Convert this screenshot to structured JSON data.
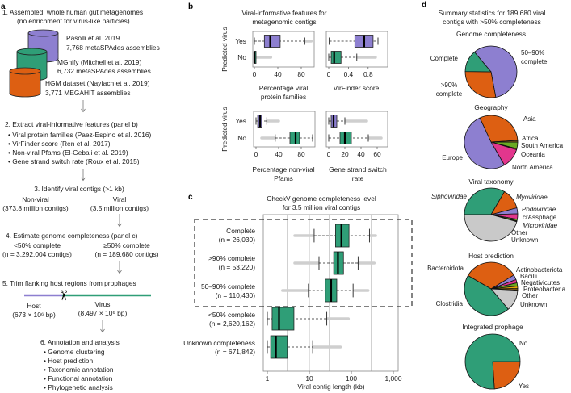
{
  "panel_labels": {
    "a": "a",
    "b": "b",
    "c": "c",
    "d": "d"
  },
  "colors": {
    "purple": "#8d7fd0",
    "green": "#2f9e77",
    "orange": "#dd5f12",
    "pink": "#e2368d",
    "lime": "#6aaa22",
    "yellow": "#e3ab08",
    "grey": "#c9c9c9",
    "brown": "#8a6418",
    "outlier": "#cfcfcf"
  },
  "flow": {
    "step1": {
      "title": "1. Assembled, whole human gut metagenomes",
      "subtitle": "(no enrichment for virus-like particles)",
      "datasets": [
        {
          "name": "Pasolli et al. 2019",
          "assemblies": "7,768 metaSPAdes assemblies",
          "color": "purple"
        },
        {
          "name": "MGnify (Mitchell et al. 2019)",
          "assemblies": "6,732 metaSPAdes assemblies",
          "color": "green"
        },
        {
          "name": "HGM dataset (Nayfach et al. 2019)",
          "assemblies": "3,771 MEGAHIT assemblies",
          "color": "orange"
        }
      ]
    },
    "step2": {
      "title": "2. Extract viral-informative features (panel b)",
      "bullets": [
        "• Viral protein families  (Paez-Espino et al. 2016)",
        "• VirFinder score (Ren et al. 2017)",
        "• Non-viral Pfams (El-Gebali et al. 2019)",
        "• Gene strand switch rate (Roux et al. 2015)"
      ]
    },
    "step3": {
      "title": "3. Identify viral contigs (>1 kb)",
      "left": {
        "label": "Non-viral",
        "count": "(373.8 million contigs)"
      },
      "right": {
        "label": "Viral",
        "count": "(3.5 million contigs)"
      }
    },
    "step4": {
      "title": "4. Estimate genome completeness (panel c)",
      "left": {
        "label": "<50% complete",
        "count": "(n = 3,292,004 contigs)"
      },
      "right": {
        "label": "≥50% complete",
        "count": "(n = 189,680 contigs)"
      }
    },
    "step5": {
      "title": "5. Trim flanking host regions from prophages",
      "host": {
        "label": "Host",
        "size": "(673 × 10⁶ bp)"
      },
      "virus": {
        "label": "Virus",
        "size": "(8,497 × 10⁶ bp)"
      }
    },
    "step6": {
      "title": "6. Annotation and analysis",
      "bullets": [
        "• Genome clustering",
        "• Host prediction",
        "• Taxonomic annotation",
        "• Functional annotation",
        "• Phylogenetic analysis"
      ]
    }
  },
  "panel_b": {
    "title_line1": "Viral-informative features for",
    "title_line2": "metagenomic contigs",
    "ylabel": "Predicted virus"
  },
  "panel_c": {
    "title_line1": "CheckV genome completeness level",
    "title_line2": "for 3.5 million viral contigs"
  },
  "panel_d": {
    "title_line1": "Summary statistics for 189,680 viral",
    "title_line2": "contigs with >50% completeness"
  },
  "chart_data": [
    {
      "type": "box",
      "panel": "b",
      "categories": [
        "Yes",
        "No"
      ],
      "xlabel_line1": "Percentage viral",
      "xlabel_line2": "protein families",
      "ylabel": "Predicted virus",
      "xlim": [
        0,
        100
      ],
      "xticks": [
        0,
        40,
        80
      ],
      "xtick_labels": [
        "0",
        "40",
        "80"
      ],
      "series": [
        {
          "category": "Yes",
          "color": "purple",
          "whisker_low": 0,
          "q1": 17,
          "median": 27,
          "q3": 44,
          "whisker_high": 86,
          "outliers_range": [
            87,
            97
          ]
        },
        {
          "category": "No",
          "color": "green",
          "whisker_low": 0,
          "q1": 0,
          "median": 0,
          "q3": 1,
          "whisker_high": 2,
          "outliers_range": [
            3,
            28
          ]
        }
      ]
    },
    {
      "type": "box",
      "panel": "b",
      "categories": [
        "Yes",
        "No"
      ],
      "xlabel_line1": "VirFinder score",
      "xlabel_line2": "",
      "xlim": [
        0,
        1
      ],
      "xticks": [
        0,
        0.4,
        0.8
      ],
      "xtick_labels": [
        "0",
        "0.4",
        "0.8"
      ],
      "series": [
        {
          "category": "Yes",
          "color": "purple",
          "whisker_low": 0.01,
          "q1": 0.53,
          "median": 0.72,
          "q3": 0.9,
          "whisker_high": 1.0,
          "outliers_range": null
        },
        {
          "category": "No",
          "color": "green",
          "whisker_low": 0.0,
          "q1": 0.05,
          "median": 0.11,
          "q3": 0.25,
          "whisker_high": 0.57,
          "outliers_range": [
            0.58,
            0.95
          ]
        }
      ]
    },
    {
      "type": "box",
      "panel": "b",
      "categories": [
        "Yes",
        "No"
      ],
      "xlabel_line1": "Percentage non-viral",
      "xlabel_line2": "Pfams",
      "ylabel": "Predicted virus",
      "xlim": [
        0,
        100
      ],
      "xticks": [
        0,
        40,
        80
      ],
      "xtick_labels": [
        "0",
        "40",
        "80"
      ],
      "series": [
        {
          "category": "Yes",
          "color": "purple",
          "whisker_low": 0,
          "q1": 3,
          "median": 7,
          "q3": 10,
          "whisker_high": 19,
          "outliers_range": [
            20,
            40
          ]
        },
        {
          "category": "No",
          "color": "green",
          "whisker_low": 34,
          "q1": 60,
          "median": 70,
          "q3": 77,
          "whisker_high": 100,
          "outliers_range": [
            10,
            33
          ]
        }
      ]
    },
    {
      "type": "box",
      "panel": "b",
      "categories": [
        "Yes",
        "No"
      ],
      "xlabel_line1": "Gene strand switch",
      "xlabel_line2": "rate",
      "xlim": [
        0,
        65
      ],
      "xticks": [
        0,
        20,
        40,
        60
      ],
      "xtick_labels": [
        "0",
        "20",
        "40",
        "60"
      ],
      "series": [
        {
          "category": "Yes",
          "color": "purple",
          "whisker_low": 0,
          "q1": 3,
          "median": 6,
          "q3": 10,
          "whisker_high": 20,
          "outliers_range": [
            21,
            47
          ]
        },
        {
          "category": "No",
          "color": "green",
          "whisker_low": 0,
          "q1": 14,
          "median": 20,
          "q3": 28,
          "whisker_high": 49,
          "outliers_range": [
            50,
            65
          ]
        }
      ]
    },
    {
      "type": "box",
      "panel": "c",
      "xlabel": "Viral contig length (kb)",
      "xscale": "log",
      "xlim": [
        0.8,
        1400
      ],
      "xticks": [
        1,
        10,
        100,
        1000
      ],
      "xtick_labels": [
        "1",
        "10",
        "100",
        "1,000"
      ],
      "grid": true,
      "highlighted_group": [
        "Complete",
        ">90% complete",
        "50–90% complete"
      ],
      "series": [
        {
          "category": "Complete",
          "n_label": "(n = 26,030)",
          "color": "green",
          "whisker_low": 13,
          "q1": 42,
          "median": 58,
          "q3": 88,
          "whisker_high": 270,
          "outliers_range": [
            4.5,
            12
          ],
          "outliers_range_high": [
            280,
            380
          ]
        },
        {
          "category": ">90% complete",
          "n_label": "(n = 53,220)",
          "color": "green",
          "whisker_low": 17,
          "q1": 38,
          "median": 48,
          "q3": 65,
          "whisker_high": 145,
          "outliers_range": [
            4.5,
            16
          ],
          "outliers_range_high": [
            150,
            350
          ]
        },
        {
          "category": "50–90% complete",
          "n_label": "(n = 110,430)",
          "color": "green",
          "whisker_low": 9.5,
          "q1": 24,
          "median": 33,
          "q3": 45,
          "whisker_high": 110,
          "outliers_range": [
            2.3,
            9
          ],
          "outliers_range_high": [
            120,
            250
          ]
        },
        {
          "category": "<50% complete",
          "n_label": "(n = 2,620,162)",
          "color": "green",
          "whisker_low": 1.0,
          "q1": 1.3,
          "median": 1.9,
          "q3": 4.3,
          "whisker_high": 26,
          "outliers_range": null,
          "outliers_range_high": [
            27,
            85
          ]
        },
        {
          "category": "Unknown completeness",
          "n_label": "(n = 671,842)",
          "color": "green",
          "whisker_low": 1.0,
          "q1": 1.2,
          "median": 1.6,
          "q3": 3.0,
          "whisker_high": 12,
          "outliers_range": null,
          "outliers_range_high": [
            12.5,
            55
          ]
        }
      ]
    },
    {
      "type": "pie",
      "panel": "d",
      "title": "Genome completeness",
      "slices": [
        {
          "label": "50–90% complete",
          "value": 58.2,
          "color": "purple"
        },
        {
          "label": ">90% complete",
          "value": 28.1,
          "color": "orange"
        },
        {
          "label": "Complete",
          "value": 13.7,
          "color": "green"
        }
      ]
    },
    {
      "type": "pie",
      "panel": "d",
      "title": "Geography",
      "slices": [
        {
          "label": "Asia",
          "value": 31,
          "color": "orange"
        },
        {
          "label": "Africa",
          "value": 1,
          "color": "brown"
        },
        {
          "label": "South America",
          "value": 4,
          "color": "lime"
        },
        {
          "label": "Oceania",
          "value": 0.6,
          "color": "yellow"
        },
        {
          "label": "North America",
          "value": 12,
          "color": "pink"
        },
        {
          "label": "Europe",
          "value": 51.4,
          "color": "purple"
        }
      ]
    },
    {
      "type": "pie",
      "panel": "d",
      "title": "Viral taxonomy",
      "slices": [
        {
          "label": "Siphoviridae",
          "value": 33.4,
          "color": "green",
          "italic": true
        },
        {
          "label": "Myoviridae",
          "value": 12.5,
          "color": "orange",
          "italic": true
        },
        {
          "label": "Podoviridae",
          "value": 3.6,
          "color": "purple",
          "italic": true
        },
        {
          "label": "crAssphage",
          "value": 3.3,
          "color": "pink"
        },
        {
          "label": "Microviridae",
          "value": 1.0,
          "color": "lime",
          "italic": true
        },
        {
          "label": "Other",
          "value": 0.5,
          "color": "brown"
        },
        {
          "label": "Unknown",
          "value": 45.7,
          "color": "grey"
        }
      ]
    },
    {
      "type": "pie",
      "panel": "d",
      "title": "Host prediction",
      "slices": [
        {
          "label": "Bacteroidota",
          "value": 33,
          "color": "orange"
        },
        {
          "label": "Actinobacteriota",
          "value": 3,
          "color": "purple"
        },
        {
          "label": "Bacilli",
          "value": 2,
          "color": "pink"
        },
        {
          "label": "Negativicutes",
          "value": 2,
          "color": "lime"
        },
        {
          "label": "Proteobacteria",
          "value": 1.5,
          "color": "yellow"
        },
        {
          "label": "Other",
          "value": 1,
          "color": "brown"
        },
        {
          "label": "Unknown",
          "value": 13,
          "color": "grey"
        },
        {
          "label": "Clostridia",
          "value": 44.5,
          "color": "green"
        }
      ]
    },
    {
      "type": "pie",
      "panel": "d",
      "title": "Integrated prophage",
      "slices": [
        {
          "label": "Yes",
          "value": 24,
          "color": "orange"
        },
        {
          "label": "No",
          "value": 76,
          "color": "green"
        }
      ]
    }
  ]
}
